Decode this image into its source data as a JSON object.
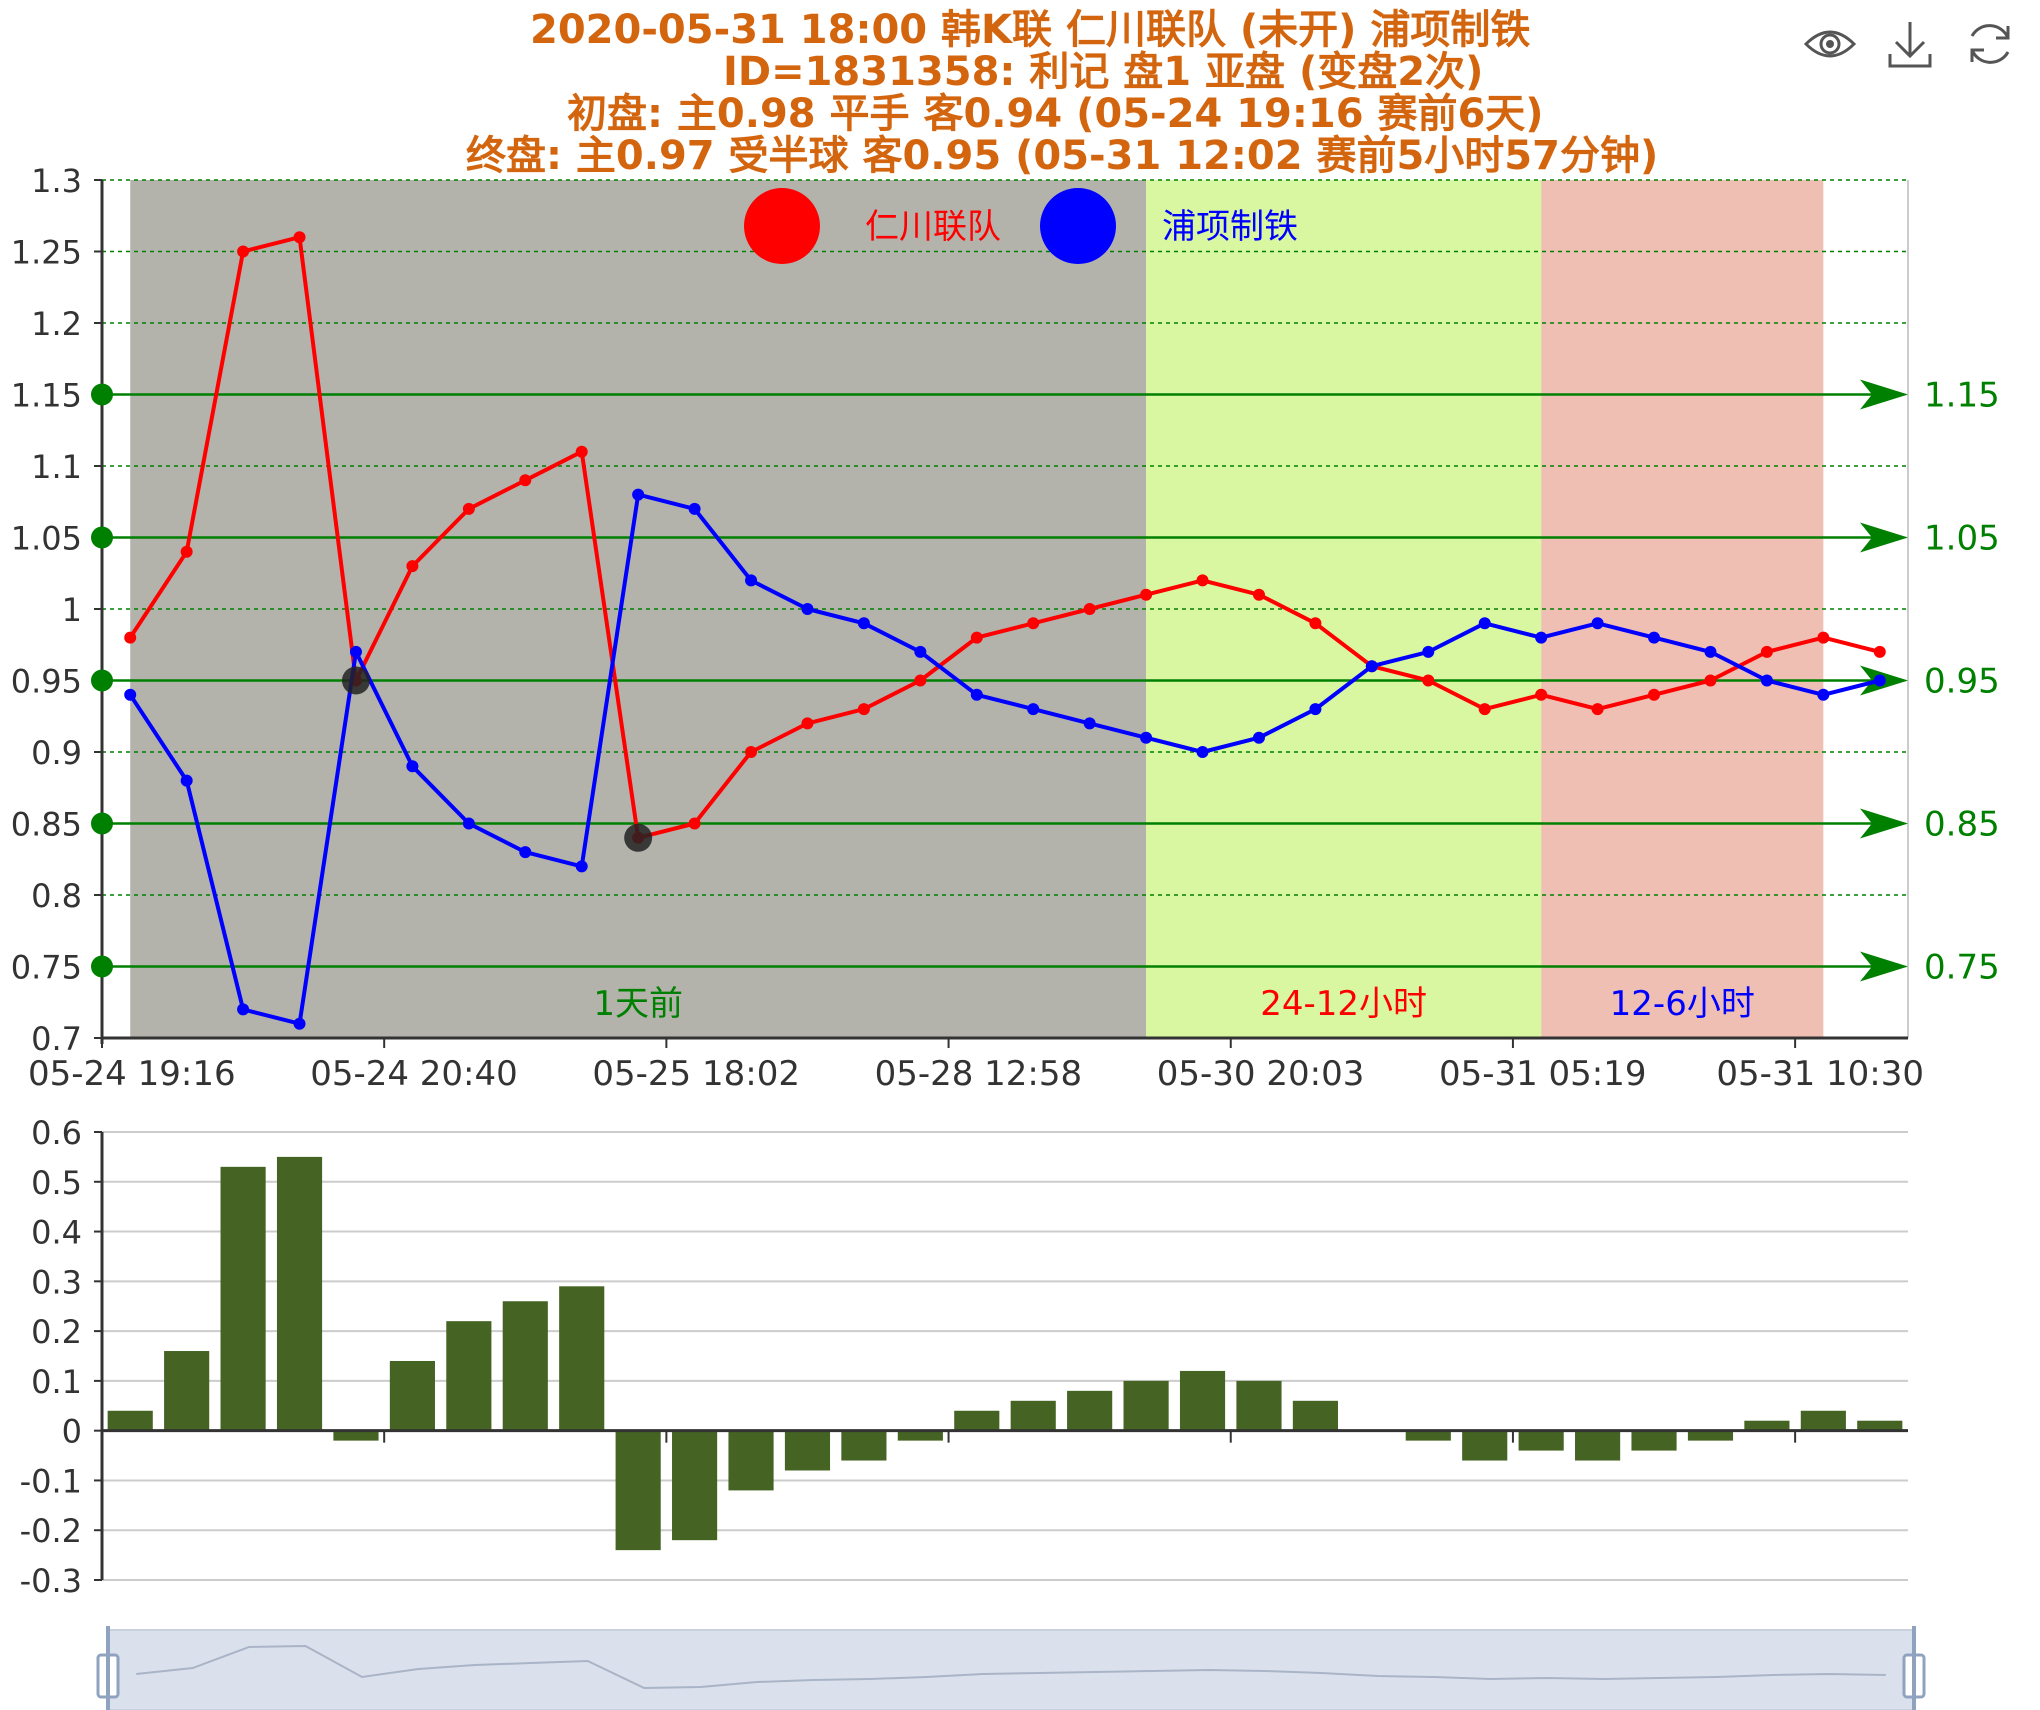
{
  "title": {
    "line1": "2020-05-31 18:00 韩K联 仁川联队 (未开) 浦项制铁",
    "line2": "ID=1831358: 利记  盘1 亚盘 (变盘2次)",
    "line3": "初盘:    主0.98      平手   客0.94      (05-24 19:16 赛前6天)",
    "line4": "终盘:    主0.97    受半球   客0.95     (05-31 12:02 赛前5小时57分钟)"
  },
  "toolbar": {
    "icons": [
      "eye-icon",
      "download-icon",
      "refresh-icon"
    ]
  },
  "colors": {
    "home": "#ff0000",
    "away": "#0000ff",
    "bar": "#456423",
    "mark": "#008000",
    "title": "#d4650f",
    "zone_1day": "#b3b3ac",
    "zone_24_12": "#d9f7a1",
    "zone_12_6": "#efbfb4"
  },
  "chart_data": [
    {
      "type": "line",
      "x_ticks": [
        "05-24 19:16",
        "05-24 20:40",
        "05-25 18:02",
        "05-28 12:58",
        "05-30 20:03",
        "05-31 05:19",
        "05-31 10:30"
      ],
      "ylim": [
        0.7,
        1.3
      ],
      "yticks": [
        "0.7",
        "0.75",
        "0.8",
        "0.85",
        "0.9",
        "0.95",
        "1",
        "1.05",
        "1.1",
        "1.15",
        "1.2",
        "1.25",
        "1.3"
      ],
      "grid": true,
      "legend_position": "top-center",
      "series": [
        {
          "name": "仁川联队",
          "color": "#ff0000",
          "values": [
            0.98,
            1.04,
            1.25,
            1.26,
            0.95,
            1.03,
            1.07,
            1.09,
            1.11,
            0.84,
            0.85,
            0.9,
            0.92,
            0.93,
            0.95,
            0.98,
            0.99,
            1.0,
            1.01,
            1.02,
            1.01,
            0.99,
            0.96,
            0.95,
            0.93,
            0.94,
            0.93,
            0.94,
            0.95,
            0.97,
            0.98,
            0.97
          ]
        },
        {
          "name": "浦项制铁",
          "color": "#0000ff",
          "values": [
            0.94,
            0.88,
            0.72,
            0.71,
            0.97,
            0.89,
            0.85,
            0.83,
            0.82,
            1.08,
            1.07,
            1.02,
            1.0,
            0.99,
            0.97,
            0.94,
            0.93,
            0.92,
            0.91,
            0.9,
            0.91,
            0.93,
            0.96,
            0.97,
            0.99,
            0.98,
            0.99,
            0.98,
            0.97,
            0.95,
            0.94,
            0.95
          ]
        }
      ],
      "change_points": [
        {
          "index": 4,
          "value": 0.95
        },
        {
          "index": 9,
          "value": 0.84
        }
      ],
      "mark_lines": [
        {
          "value": 0.75,
          "label": "0.75"
        },
        {
          "value": 0.85,
          "label": "0.85"
        },
        {
          "value": 0.95,
          "label": "0.95"
        },
        {
          "value": 1.05,
          "label": "1.05"
        },
        {
          "value": 1.15,
          "label": "1.15"
        }
      ],
      "zones": [
        {
          "label": "1天前",
          "label_color": "#008000",
          "color": "#b3b3ac",
          "x_start": 0.5,
          "x_end": 18.5
        },
        {
          "label": "24-12小时",
          "label_color": "#ff0000",
          "color": "#d9f7a1",
          "x_start": 18.5,
          "x_end": 25.5
        },
        {
          "label": "12-6小时",
          "label_color": "#0000ff",
          "color": "#efbfb4",
          "x_start": 25.5,
          "x_end": 30.5
        }
      ]
    },
    {
      "type": "bar",
      "ylim": [
        -0.3,
        0.6
      ],
      "yticks": [
        "-0.3",
        "-0.2",
        "-0.1",
        "0",
        "0.1",
        "0.2",
        "0.3",
        "0.4",
        "0.5",
        "0.6"
      ],
      "grid": true,
      "series": [
        {
          "color": "#456423",
          "values": [
            0.04,
            0.16,
            0.53,
            0.55,
            -0.02,
            0.14,
            0.22,
            0.26,
            0.29,
            -0.24,
            -0.22,
            -0.12,
            -0.08,
            -0.06,
            -0.02,
            0.04,
            0.06,
            0.08,
            0.1,
            0.12,
            0.1,
            0.06,
            0.0,
            -0.02,
            -0.06,
            -0.04,
            -0.06,
            -0.04,
            -0.02,
            0.02,
            0.04,
            0.02
          ]
        }
      ]
    }
  ]
}
